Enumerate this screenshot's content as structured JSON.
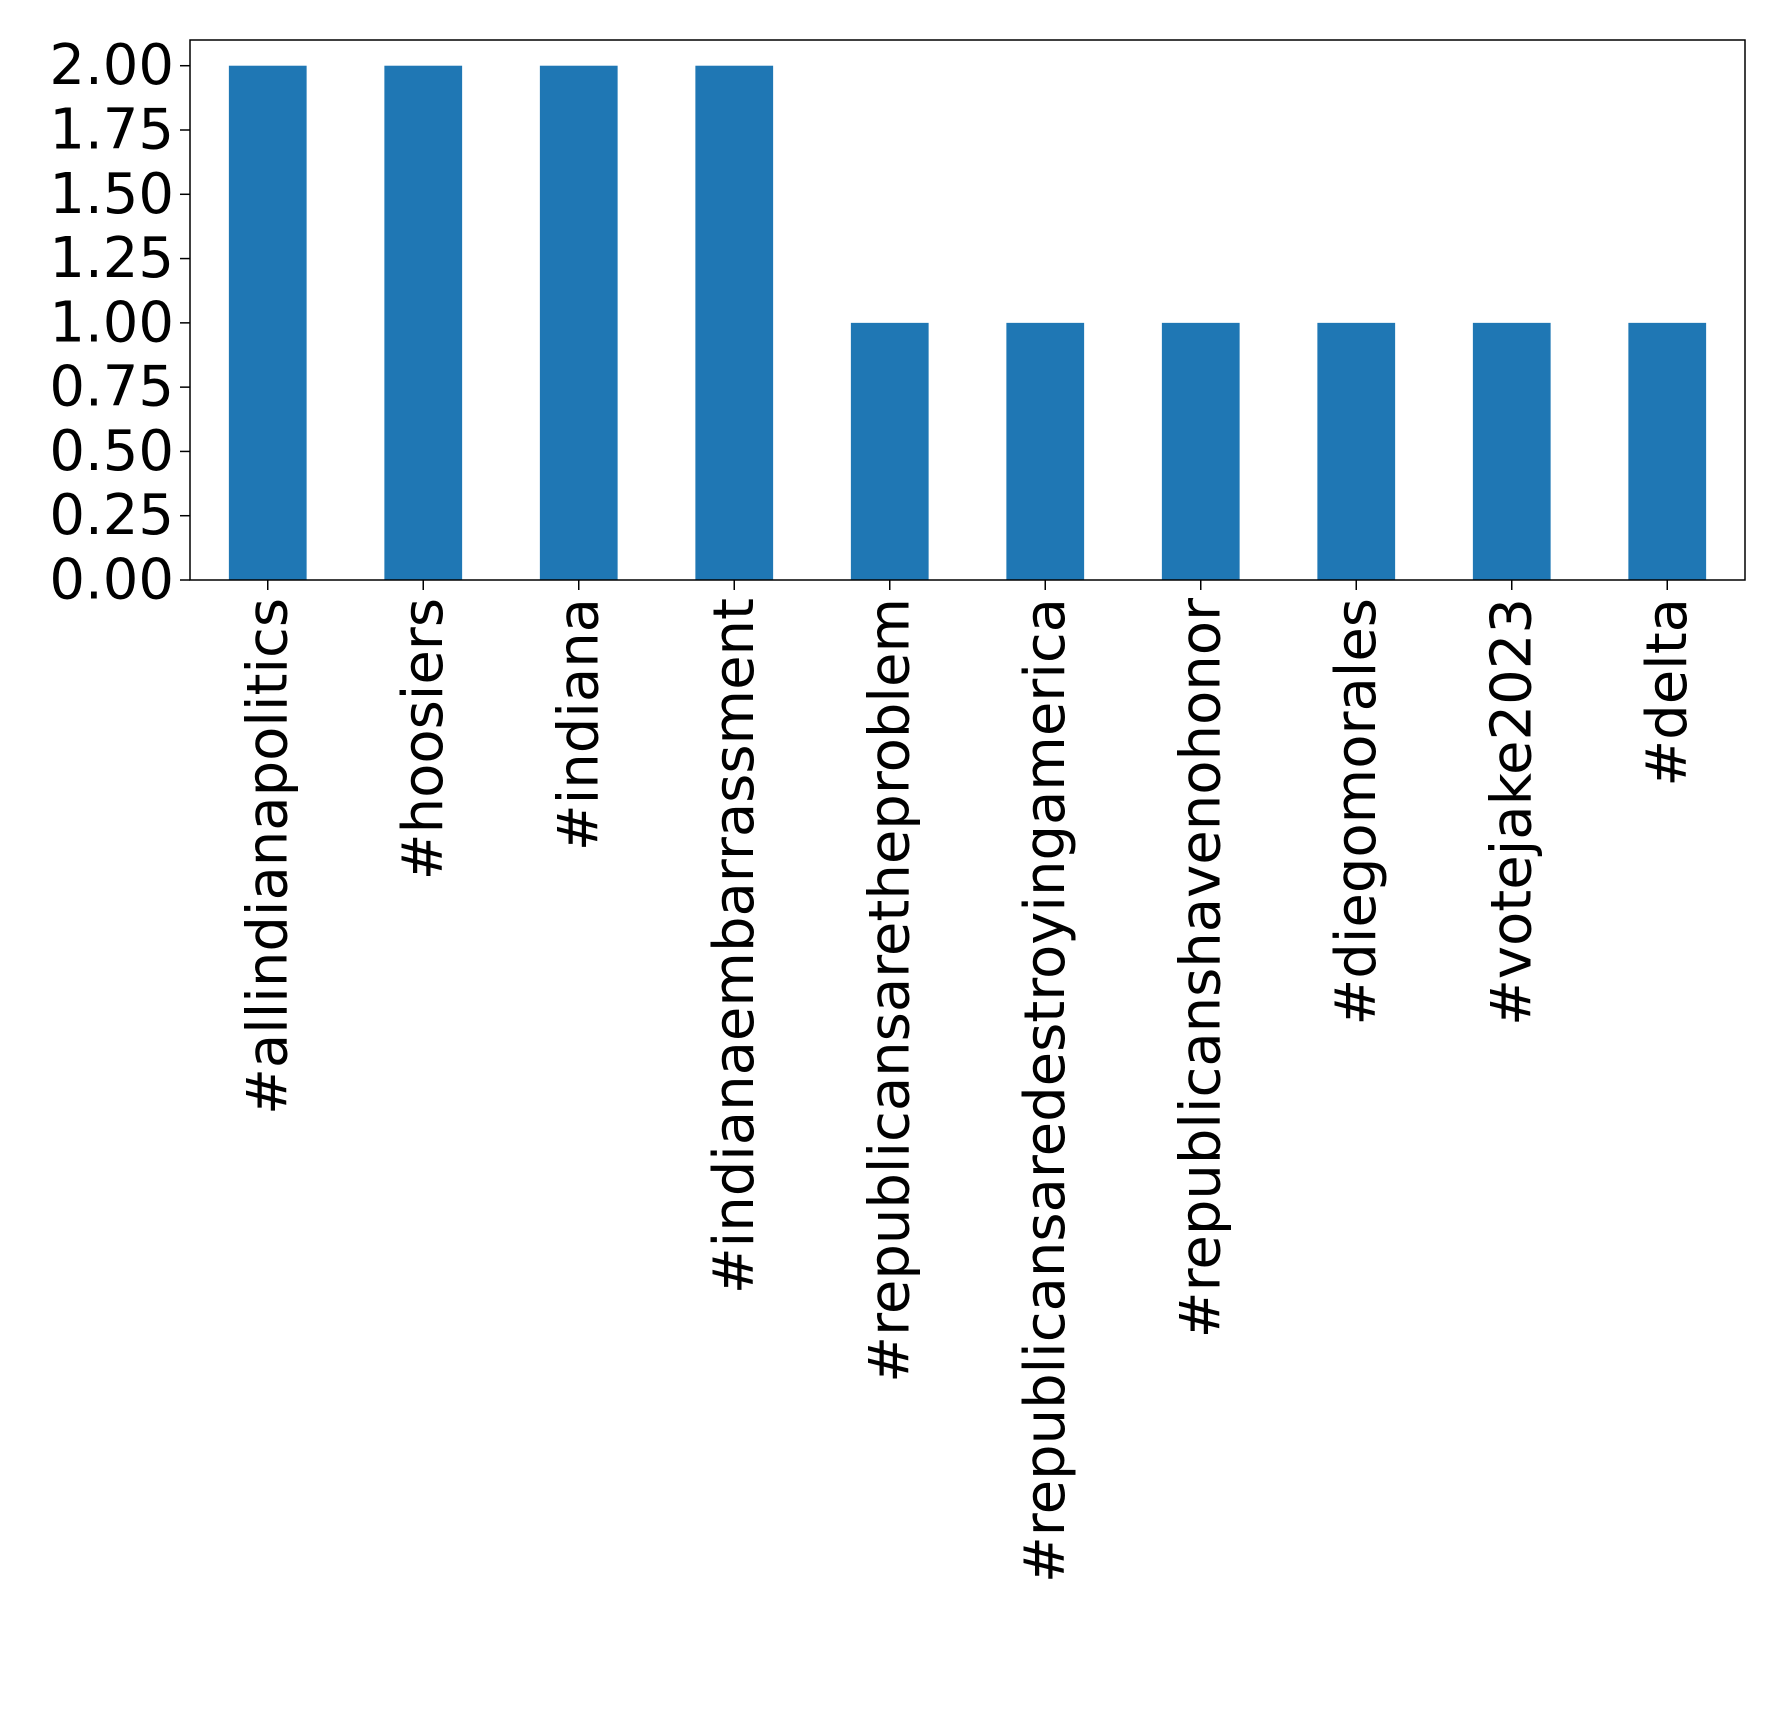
{
  "chart_data": {
    "type": "bar",
    "title": "",
    "xlabel": "",
    "ylabel": "",
    "categories": [
      "#allindianapolitics",
      "#hoosiers",
      "#indiana",
      "#indianaembarrassment",
      "#republicansaretheproblem",
      "#republicansaredestroyingamerica",
      "#republicanshavenohonor",
      "#diegomorales",
      "#votejake2023",
      "#delta"
    ],
    "values": [
      2,
      2,
      2,
      2,
      1,
      1,
      1,
      1,
      1,
      1
    ],
    "ylim": [
      0,
      2.1
    ],
    "yticks": [
      "0.00",
      "0.25",
      "0.50",
      "0.75",
      "1.00",
      "1.25",
      "1.50",
      "1.75",
      "2.00"
    ],
    "bar_color": "#1f77b4",
    "grid": false,
    "legend": "none"
  }
}
